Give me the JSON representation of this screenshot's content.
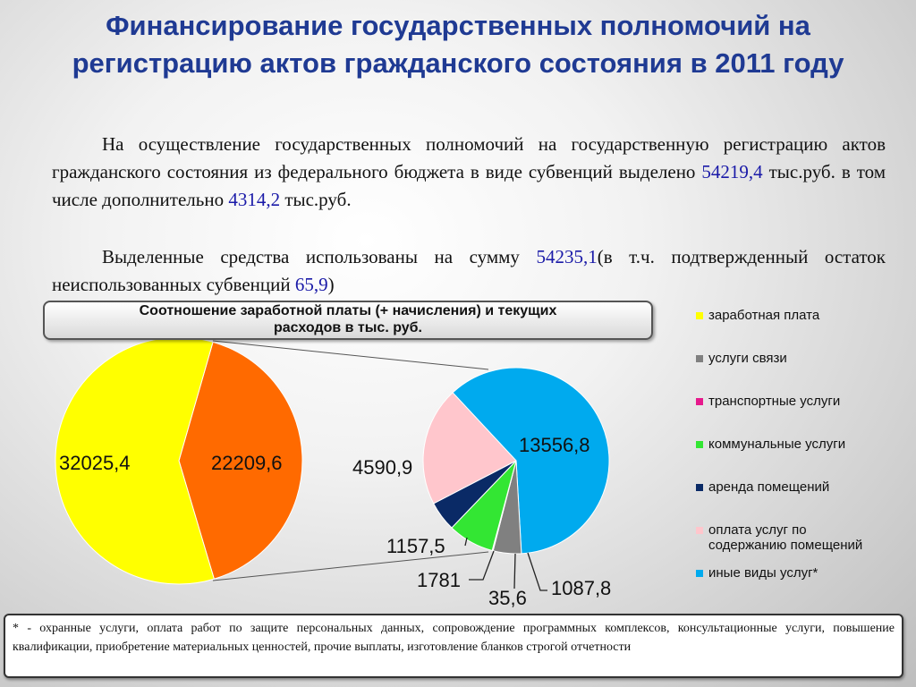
{
  "title": "Финансирование государственных полномочий на регистрацию актов гражданского состояния в 2011 году",
  "paragraph1": {
    "text_a": "На осуществление государственных полномочий на государственную регистрацию актов гражданского состояния из федерального бюджета в виде субвенций выделено ",
    "num_a": "54219,4",
    "text_b": " тыс.руб. в том числе дополнительно ",
    "num_b": "4314,2",
    "text_c": " тыс.руб."
  },
  "paragraph2": {
    "text_a": "Выделенные средства использованы  на сумму  ",
    "num_a": "54235,1",
    "text_b": "(в т.ч. подтвержденный  остаток неиспользованных субвенций ",
    "num_b": "65,9",
    "text_c": ")"
  },
  "caption": {
    "line1": "Соотношение заработной платы (+ начисления) и текущих",
    "line2": "расходов в тыс. руб."
  },
  "footnote": "* - охранные услуги, оплата работ по защите персональных данных, сопровождение программных комплексов, консультационные услуги, повышение квалификации, приобретение материальных ценностей, прочие выплаты, изготовление бланков строгой отчетности",
  "legend": [
    {
      "label": "заработная плата",
      "color": "#ffff00"
    },
    {
      "label": "услуги связи",
      "color": "#808080"
    },
    {
      "label": "транспортные услуги",
      "color": "#e6198c"
    },
    {
      "label": "коммунальные услуги",
      "color": "#33e633"
    },
    {
      "label": "аренда помещений",
      "color": "#0a2a66"
    },
    {
      "label": "оплата услуг по содержанию помещений",
      "color": "#ffc6cc"
    },
    {
      "label": "иные виды услуг*",
      "color": "#00aaee"
    }
  ],
  "chart_data": [
    {
      "type": "pie",
      "slices": [
        {
          "label": "32025,4",
          "value": 32025.4,
          "color": "#ffff00"
        },
        {
          "label": "22209,6",
          "value": 22209.6,
          "color": "#ff6a00"
        }
      ]
    },
    {
      "type": "pie",
      "slices": [
        {
          "label": "13556,8",
          "value": 13556.8,
          "color": "#00aaee",
          "category": "иные виды услуг*"
        },
        {
          "label": "1087,8",
          "value": 1087.8,
          "color": "#808080",
          "category": "услуги связи"
        },
        {
          "label": "35,6",
          "value": 35.6,
          "color": "#e6198c",
          "category": "транспортные услуги"
        },
        {
          "label": "1781",
          "value": 1781,
          "color": "#33e633",
          "category": "коммунальные услуги"
        },
        {
          "label": "1157,5",
          "value": 1157.5,
          "color": "#0a2a66",
          "category": "аренда помещений"
        },
        {
          "label": "4590,9",
          "value": 4590.9,
          "color": "#ffc6cc",
          "category": "оплата услуг по содержанию помещений"
        }
      ]
    }
  ]
}
